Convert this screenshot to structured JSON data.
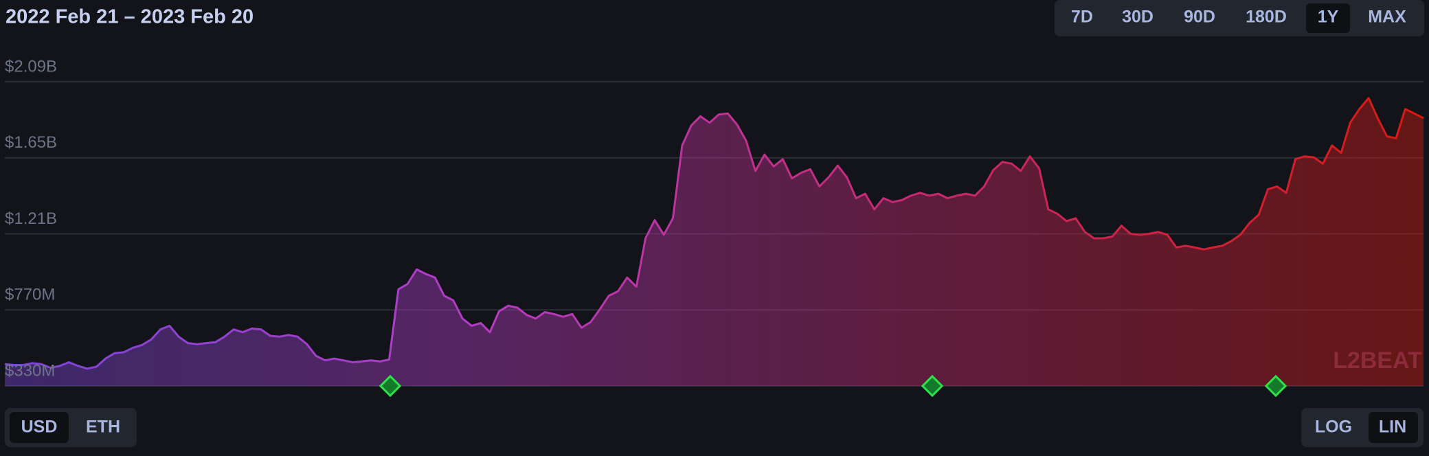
{
  "header": {
    "title": "2022 Feb 21 – 2023 Feb 20",
    "ranges": [
      "7D",
      "30D",
      "90D",
      "180D",
      "1Y",
      "MAX"
    ],
    "selected": 4
  },
  "chart_data": {
    "type": "area",
    "values": [
      456000000.0,
      451000000.0,
      451000000.0,
      462000000.0,
      456000000.0,
      435000000.0,
      446000000.0,
      467000000.0,
      446000000.0,
      430000000.0,
      441000000.0,
      488000000.0,
      520000000.0,
      525000000.0,
      551000000.0,
      567000000.0,
      599000000.0,
      657000000.0,
      678000000.0,
      615000000.0,
      578000000.0,
      572000000.0,
      578000000.0,
      583000000.0,
      615000000.0,
      657000000.0,
      641000000.0,
      662000000.0,
      657000000.0,
      620000000.0,
      615000000.0,
      625000000.0,
      615000000.0,
      572000000.0,
      504000000.0,
      478000000.0,
      488000000.0,
      478000000.0,
      467000000.0,
      472000000.0,
      478000000.0,
      472000000.0,
      483000000.0,
      889000000.0,
      920000000.0,
      1004000000.0,
      978000000.0,
      957000000.0,
      852000000.0,
      825000000.0,
      720000000.0,
      678000000.0,
      694000000.0,
      641000000.0,
      762000000.0,
      794000000.0,
      783000000.0,
      741000000.0,
      720000000.0,
      757000000.0,
      746000000.0,
      730000000.0,
      746000000.0,
      667000000.0,
      699000000.0,
      773000000.0,
      852000000.0,
      878000000.0,
      957000000.0,
      904000000.0,
      1184000000.0,
      1289000000.0,
      1205000000.0,
      1300000000.0,
      1721000000.0,
      1837000000.0,
      1890000000.0,
      1853000000.0,
      1900000000.0,
      1906000000.0,
      1842000000.0,
      1748000000.0,
      1574000000.0,
      1668000000.0,
      1600000000.0,
      1642000000.0,
      1531000000.0,
      1563000000.0,
      1584000000.0,
      1484000000.0,
      1537000000.0,
      1605000000.0,
      1537000000.0,
      1416000000.0,
      1442000000.0,
      1352000000.0,
      1416000000.0,
      1394000000.0,
      1405000000.0,
      1431000000.0,
      1447000000.0,
      1431000000.0,
      1442000000.0,
      1416000000.0,
      1431000000.0,
      1442000000.0,
      1431000000.0,
      1484000000.0,
      1579000000.0,
      1626000000.0,
      1616000000.0,
      1574000000.0,
      1658000000.0,
      1589000000.0,
      1352000000.0,
      1326000000.0,
      1284000000.0,
      1300000000.0,
      1221000000.0,
      1184000000.0,
      1184000000.0,
      1194000000.0,
      1257000000.0,
      1210000000.0,
      1205000000.0,
      1210000000.0,
      1221000000.0,
      1205000000.0,
      1131000000.0,
      1141000000.0,
      1131000000.0,
      1120000000.0,
      1131000000.0,
      1141000000.0,
      1168000000.0,
      1205000000.0,
      1273000000.0,
      1321000000.0,
      1468000000.0,
      1484000000.0,
      1447000000.0,
      1642000000.0,
      1658000000.0,
      1653000000.0,
      1616000000.0,
      1721000000.0,
      1679000000.0,
      1853000000.0,
      1932000000.0,
      1995000000.0,
      1879000000.0,
      1774000000.0,
      1763000000.0,
      1932000000.0,
      1906000000.0,
      1879000000.0
    ],
    "ylim": [
      330000000,
      2090000000
    ],
    "yticks": [
      {
        "value": 330000000,
        "label": "$330M"
      },
      {
        "value": 770000000,
        "label": "$770M"
      },
      {
        "value": 1210000000,
        "label": "$1.21B"
      },
      {
        "value": 1650000000,
        "label": "$1.65B"
      },
      {
        "value": 2090000000,
        "label": "$2.09B"
      }
    ],
    "grid": true,
    "gradient": [
      "#7a45d8",
      "#b43cc4",
      "#c8286a",
      "#d81a10"
    ]
  },
  "controls": {
    "currency": [
      "USD",
      "ETH"
    ],
    "currency_selected": 0,
    "scale": [
      "LOG",
      "LIN"
    ],
    "scale_selected": 1
  },
  "watermark": "L2BEAT"
}
